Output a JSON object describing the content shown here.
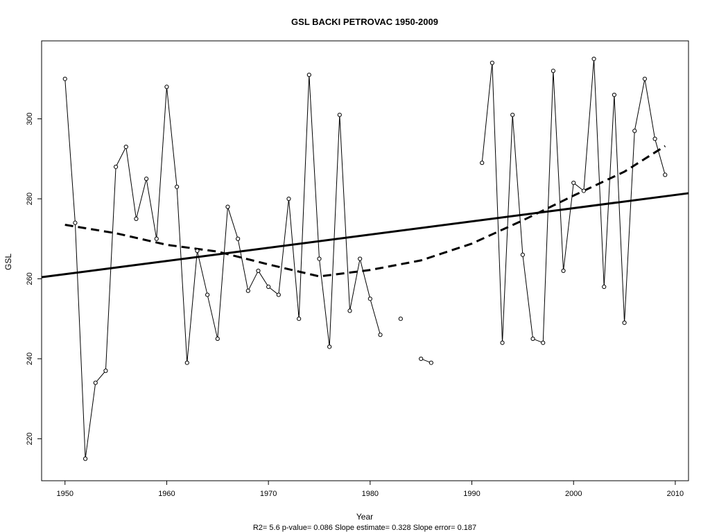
{
  "chart_data": {
    "type": "line",
    "title": "GSL   BACKI PETROVAC 1950-2009",
    "xlabel": "Year",
    "ylabel": "GSL",
    "footnote": "R2= 5.6  p-value= 0.086  Slope estimate= 0.328  Slope error= 0.187",
    "xlim": [
      1947.7,
      2011.3
    ],
    "ylim": [
      209.5,
      319.5
    ],
    "x_ticks": [
      1950,
      1960,
      1970,
      1980,
      1990,
      2000,
      2010
    ],
    "y_ticks": [
      220,
      240,
      260,
      280,
      300
    ],
    "grid": false,
    "legend": "none",
    "series": [
      {
        "style": "points-and-lines",
        "values": [
          [
            1950,
            310
          ],
          [
            1951,
            274
          ],
          [
            1952,
            215
          ],
          [
            1953,
            234
          ],
          [
            1954,
            237
          ],
          [
            1955,
            288
          ],
          [
            1956,
            293
          ],
          [
            1957,
            275
          ],
          [
            1958,
            285
          ],
          [
            1959,
            270
          ],
          [
            1960,
            308
          ],
          [
            1961,
            283
          ],
          [
            1962,
            239
          ],
          [
            1963,
            267
          ],
          [
            1964,
            256
          ],
          [
            1965,
            245
          ],
          [
            1966,
            278
          ],
          [
            1967,
            270
          ],
          [
            1968,
            257
          ],
          [
            1969,
            262
          ],
          [
            1970,
            258
          ],
          [
            1971,
            256
          ],
          [
            1972,
            280
          ],
          [
            1973,
            250
          ],
          [
            1974,
            311
          ],
          [
            1975,
            265
          ],
          [
            1976,
            243
          ],
          [
            1977,
            301
          ],
          [
            1978,
            252
          ],
          [
            1979,
            265
          ],
          [
            1980,
            255
          ],
          [
            1981,
            246
          ],
          [
            1982,
            null
          ],
          [
            1983,
            250
          ],
          [
            1984,
            null
          ],
          [
            1985,
            240
          ],
          [
            1986,
            239
          ],
          [
            1987,
            null
          ],
          [
            1988,
            null
          ],
          [
            1989,
            null
          ],
          [
            1990,
            null
          ],
          [
            1991,
            289
          ],
          [
            1992,
            314
          ],
          [
            1993,
            244
          ],
          [
            1994,
            301
          ],
          [
            1995,
            266
          ],
          [
            1996,
            245
          ],
          [
            1997,
            244
          ],
          [
            1998,
            312
          ],
          [
            1999,
            262
          ],
          [
            2000,
            284
          ],
          [
            2001,
            282
          ],
          [
            2002,
            315
          ],
          [
            2003,
            258
          ],
          [
            2004,
            306
          ],
          [
            2005,
            249
          ],
          [
            2006,
            297
          ],
          [
            2007,
            310
          ],
          [
            2008,
            295
          ],
          [
            2009,
            286
          ]
        ]
      },
      {
        "style": "linear-trend",
        "values": [
          [
            1947.7,
            260.4
          ],
          [
            2011.3,
            281.4
          ]
        ]
      },
      {
        "style": "smoothed-trend-dashed",
        "values": [
          [
            1950,
            273.5
          ],
          [
            1955,
            271.4
          ],
          [
            1960,
            268.5
          ],
          [
            1965,
            266.8
          ],
          [
            1970,
            263.6
          ],
          [
            1975,
            260.6
          ],
          [
            1980,
            262.2
          ],
          [
            1985,
            264.6
          ],
          [
            1990,
            268.8
          ],
          [
            1995,
            274.6
          ],
          [
            2000,
            280.8
          ],
          [
            2005,
            286.8
          ],
          [
            2009,
            293.2
          ]
        ]
      }
    ]
  }
}
